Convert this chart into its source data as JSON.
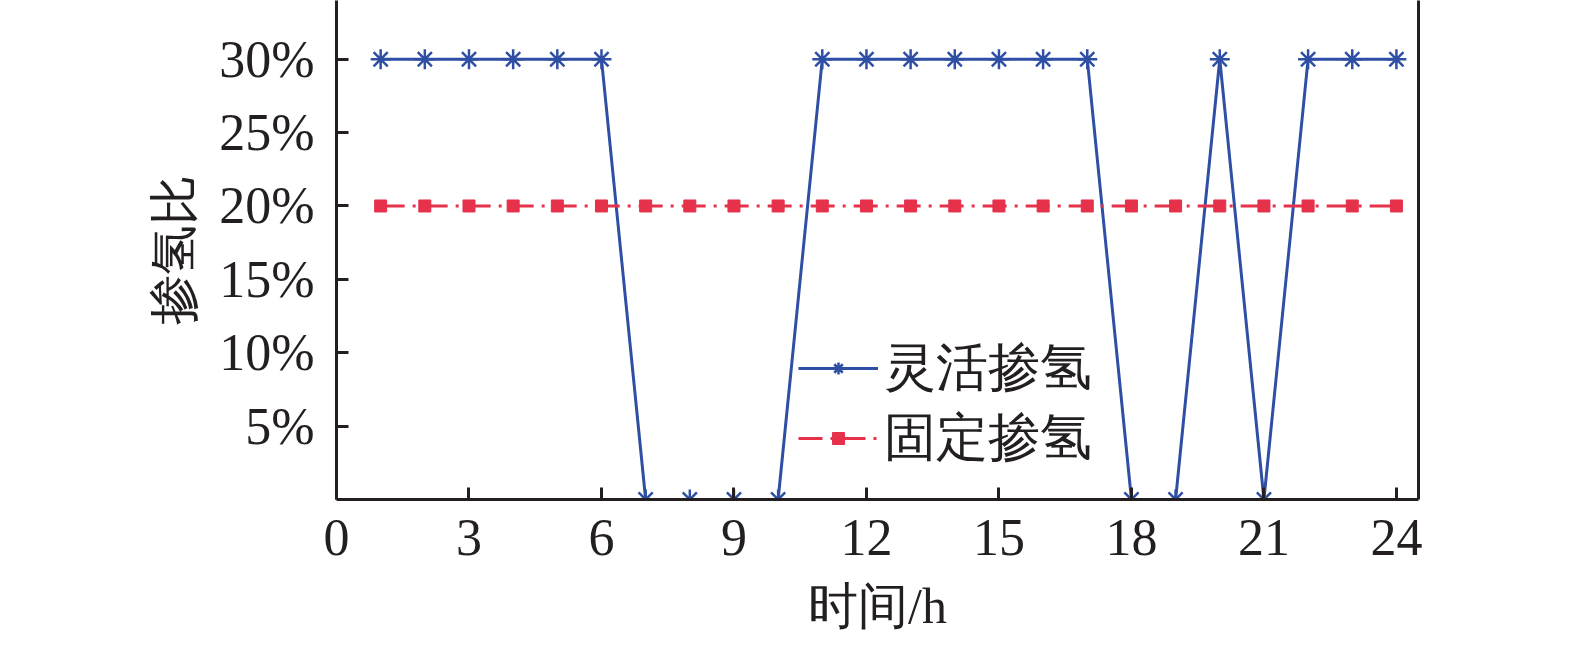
{
  "chart_data": {
    "type": "line",
    "xlabel": "时间/h",
    "ylabel": "掺氢比",
    "x": [
      1,
      2,
      3,
      4,
      5,
      6,
      7,
      8,
      9,
      10,
      11,
      12,
      13,
      14,
      15,
      16,
      17,
      18,
      19,
      20,
      21,
      22,
      23,
      24
    ],
    "xlim": [
      0,
      24.5
    ],
    "xticks": [
      0,
      3,
      6,
      9,
      12,
      15,
      18,
      21,
      24
    ],
    "ylim": [
      0,
      34
    ],
    "yticks": [
      {
        "value": 5,
        "label": "5%"
      },
      {
        "value": 10,
        "label": "10%"
      },
      {
        "value": 15,
        "label": "15%"
      },
      {
        "value": 20,
        "label": "20%"
      },
      {
        "value": 25,
        "label": "25%"
      },
      {
        "value": 30,
        "label": "30%"
      }
    ],
    "series": [
      {
        "name": "灵活掺氢",
        "color": "#2e4fa3",
        "marker": "cross",
        "line_style": "solid",
        "values": [
          30,
          30,
          30,
          30,
          30,
          30,
          0,
          0,
          0,
          0,
          30,
          30,
          30,
          30,
          30,
          30,
          30,
          0,
          0,
          30,
          0,
          30,
          30,
          30
        ]
      },
      {
        "name": "固定掺氢",
        "color": "#e5314a",
        "marker": "square",
        "line_style": "dashdot",
        "values": [
          20,
          20,
          20,
          20,
          20,
          20,
          20,
          20,
          20,
          20,
          20,
          20,
          20,
          20,
          20,
          20,
          20,
          20,
          20,
          20,
          20,
          20,
          20,
          20
        ]
      }
    ],
    "legend": "bottom",
    "grid": false
  }
}
